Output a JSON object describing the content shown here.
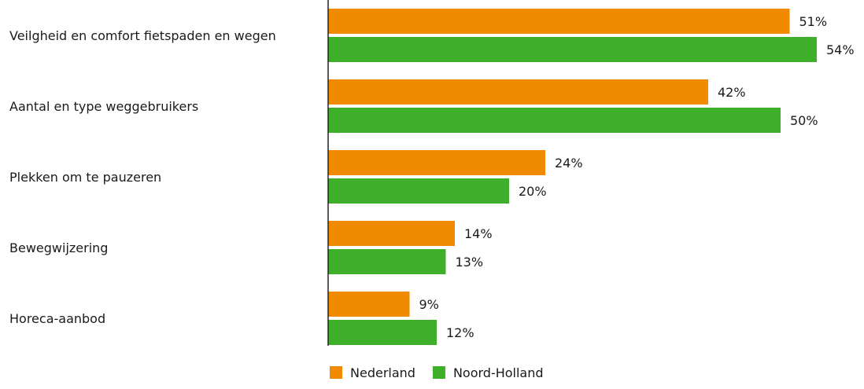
{
  "chart_data": {
    "type": "bar",
    "orientation": "horizontal",
    "title": "",
    "xlabel": "",
    "ylabel": "",
    "categories": [
      "Veilgheid en comfort fietspaden en wegen",
      "Aantal en type weggebruikers",
      "Plekken om te pauzeren",
      "Bewegwijzering",
      "Horeca-aanbod"
    ],
    "series": [
      {
        "name": "Nederland",
        "color": "#f08a00",
        "values": [
          51,
          42,
          24,
          14,
          9
        ],
        "labels": [
          "51%",
          "42%",
          "24%",
          "14%",
          "9%"
        ]
      },
      {
        "name": "Noord-Holland",
        "color": "#3fae2a",
        "values": [
          54,
          50,
          20,
          13,
          12
        ],
        "labels": [
          "54%",
          "50%",
          "20%",
          "13%",
          "12%"
        ]
      }
    ],
    "xlim": [
      0,
      100
    ],
    "grid": false,
    "legend": "bottom-center"
  }
}
